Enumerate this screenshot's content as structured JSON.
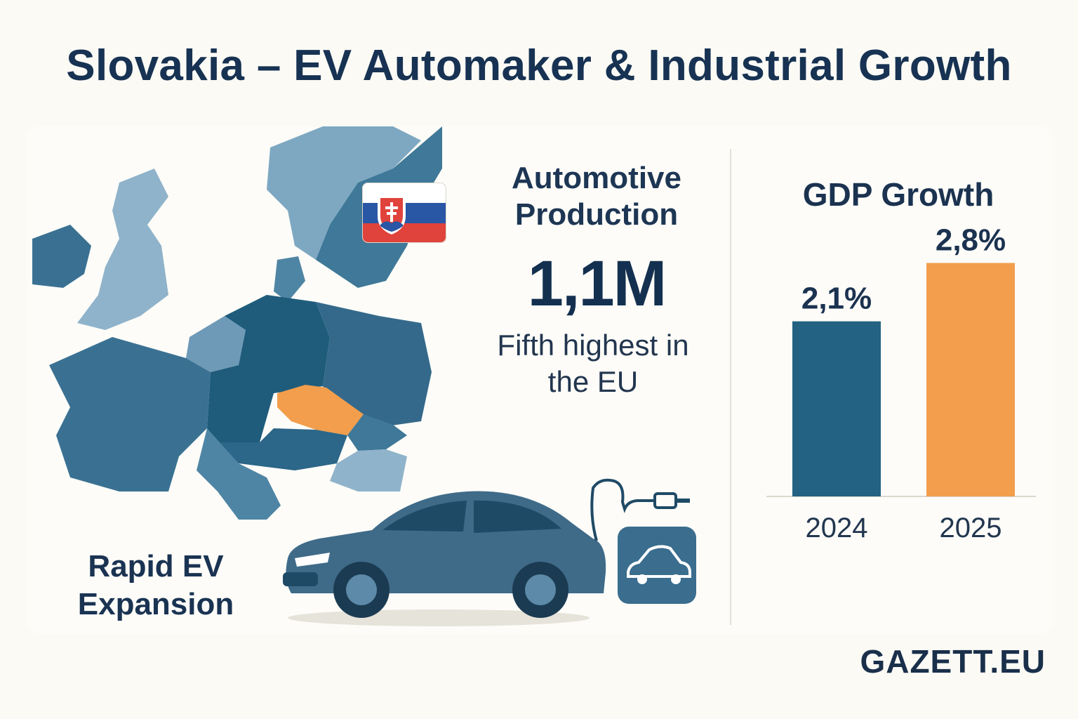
{
  "title": "Slovakia – EV Automaker & Industrial Growth",
  "production": {
    "heading": "Automotive Production",
    "value": "1,1M",
    "note": "Fifth highest in the EU"
  },
  "ev_label": "Rapid EV Expansion",
  "brand": "GAZETT.EU",
  "colors": {
    "accent_blue": "#236282",
    "accent_orange": "#f29e4c",
    "text_dark": "#173252",
    "map_light": "#7ea8c2",
    "map_mid": "#3a7193",
    "map_dark": "#1f5c7c"
  },
  "icons": {
    "flag": "slovakia-flag-icon",
    "charger": "ev-charger-icon",
    "car": "electric-car-icon"
  },
  "chart_data": {
    "type": "bar",
    "title": "GDP Growth",
    "categories": [
      "2024",
      "2025"
    ],
    "values": [
      2.1,
      2.8
    ],
    "value_labels": [
      "2,1%",
      "2,8%"
    ],
    "bar_colors": [
      "#236282",
      "#f29e4c"
    ],
    "ylim": [
      0,
      3.2
    ],
    "grid": false,
    "legend": "none"
  }
}
